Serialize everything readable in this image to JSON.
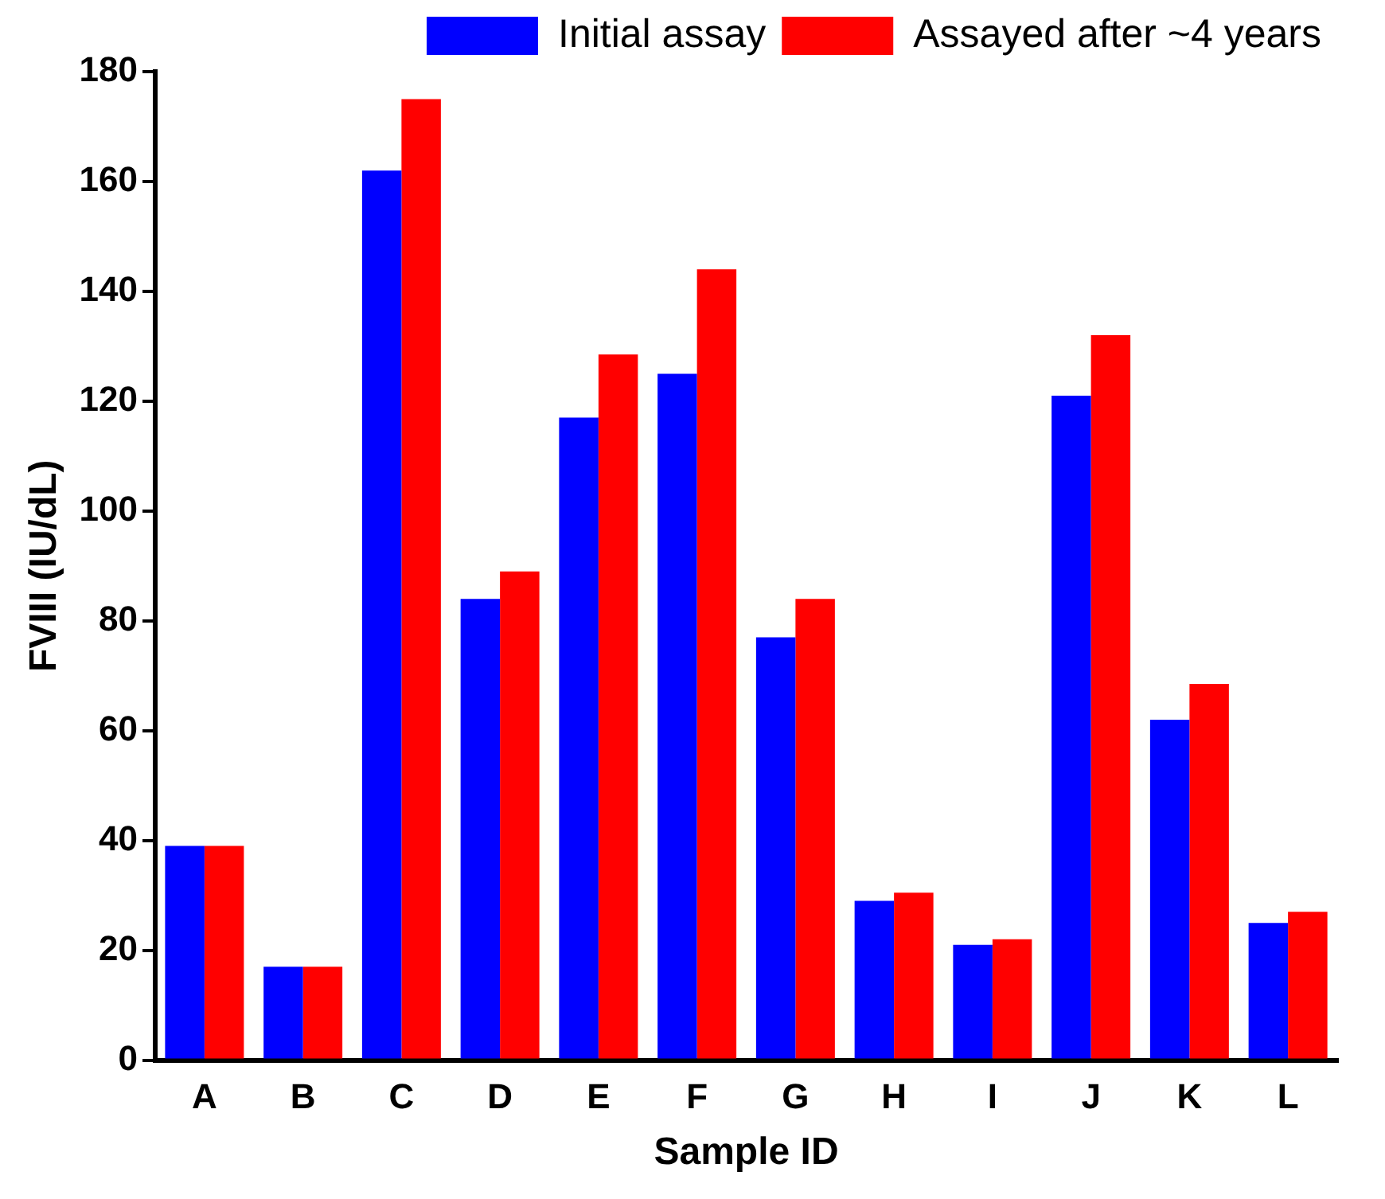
{
  "chart_data": {
    "type": "bar",
    "xlabel": "Sample ID",
    "ylabel": "FVIII (IU/dL)",
    "categories": [
      "A",
      "B",
      "C",
      "D",
      "E",
      "F",
      "G",
      "H",
      "I",
      "J",
      "K",
      "L"
    ],
    "series": [
      {
        "name": "Initial assay",
        "color": "#0000ff",
        "values": [
          39,
          17,
          162,
          84,
          117,
          125,
          77,
          29,
          21,
          121,
          62,
          25
        ]
      },
      {
        "name": "Assayed after ~4 years",
        "color": "#ff0000",
        "values": [
          39,
          17,
          175,
          89,
          128.5,
          144,
          84,
          30.5,
          22,
          132,
          68.5,
          27
        ]
      }
    ],
    "ylim": [
      0,
      180
    ],
    "yticks": [
      0,
      20,
      40,
      60,
      80,
      100,
      120,
      140,
      160,
      180
    ],
    "grid": false,
    "legend": "top right"
  }
}
